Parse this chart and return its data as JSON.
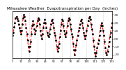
{
  "title": "Milwaukee Weather  Evapotranspiration per Day  (Inches)",
  "title_fontsize": 4.0,
  "line_color": "#ff0000",
  "marker_color": "#000000",
  "line_style": "--",
  "marker_style": ".",
  "marker_size": 2.0,
  "line_width": 0.8,
  "background_color": "#ffffff",
  "ylim": [
    -0.25,
    0.35
  ],
  "yticks": [
    0.3,
    0.2,
    0.1,
    0.0,
    -0.1,
    -0.2
  ],
  "ytick_labels": [
    ".30",
    ".20",
    ".10",
    ".00",
    "-.10",
    "-.20"
  ],
  "ytick_fontsize": 2.8,
  "xtick_fontsize": 2.8,
  "values": [
    0.04,
    0.08,
    0.15,
    0.2,
    0.26,
    0.28,
    0.25,
    0.22,
    0.18,
    0.14,
    0.1,
    0.06,
    0.1,
    0.18,
    0.26,
    0.3,
    0.28,
    0.22,
    0.14,
    0.06,
    -0.02,
    -0.1,
    -0.16,
    -0.1,
    -0.04,
    0.06,
    0.16,
    0.22,
    0.18,
    0.12,
    0.06,
    0.1,
    0.16,
    0.22,
    0.26,
    0.24,
    0.18,
    0.1,
    0.04,
    0.0,
    0.06,
    0.14,
    0.2,
    0.24,
    0.2,
    0.14,
    0.08,
    0.04,
    0.02,
    0.06,
    0.12,
    0.18,
    0.22,
    0.24,
    0.2,
    0.14,
    0.08,
    0.04,
    -0.02,
    -0.1,
    -0.16,
    -0.12,
    -0.06,
    0.02,
    0.1,
    0.18,
    0.24,
    0.22,
    0.16,
    0.1,
    0.06,
    0.02,
    0.08,
    0.16,
    0.22,
    0.26,
    0.24,
    0.18,
    0.12,
    0.06,
    0.02,
    -0.06,
    -0.14,
    -0.2,
    -0.14,
    -0.08,
    -0.02,
    0.04,
    0.1,
    0.14,
    0.18,
    0.22,
    0.24,
    0.2,
    0.14,
    0.08,
    0.04,
    0.0,
    0.04,
    0.1,
    0.16,
    0.22,
    0.26,
    0.28,
    0.24,
    0.18,
    0.12,
    0.06,
    -0.02,
    -0.1,
    -0.18,
    -0.22,
    -0.18,
    -0.12,
    -0.06,
    -0.02,
    0.04,
    0.1,
    0.16,
    0.2,
    0.16,
    0.1,
    0.04,
    -0.04,
    -0.12,
    -0.18,
    -0.2,
    -0.16,
    -0.1,
    -0.04,
    0.02,
    0.08,
    0.14,
    0.2
  ],
  "vline_positions": [
    11,
    22,
    33,
    44,
    55,
    66,
    77,
    88,
    99,
    110,
    121
  ],
  "vline_color": "#aaaaaa",
  "vline_style": ":"
}
